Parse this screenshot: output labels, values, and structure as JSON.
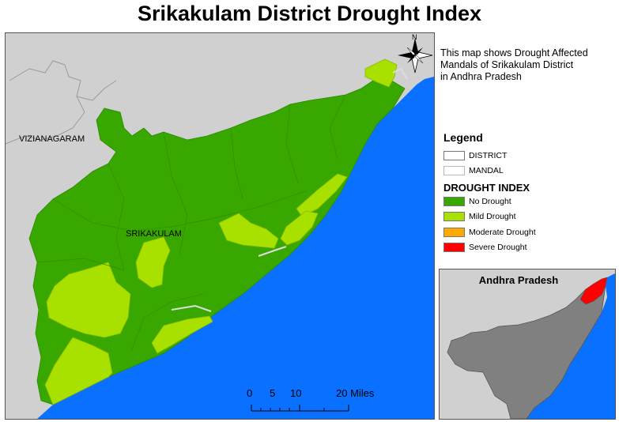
{
  "title": "Srikakulam District Drought Index",
  "description": [
    "This map shows Drought Affected",
    "Mandals of Srikakulam District",
    "in Andhra Pradesh"
  ],
  "map_labels": {
    "neighbor": "VIZIANAGARAM",
    "district": "SRIKAKULAM",
    "north": "N"
  },
  "legend": {
    "title": "Legend",
    "boundaries": [
      {
        "label": "DISTRICT"
      },
      {
        "label": "MANDAL"
      }
    ],
    "index_title": "DROUGHT INDEX",
    "classes": [
      {
        "label": "No Drought",
        "color": "#38a800"
      },
      {
        "label": "Mild Drought",
        "color": "#a8e000"
      },
      {
        "label": "Moderate Drought",
        "color": "#ffaa00"
      },
      {
        "label": "Severe Drought",
        "color": "#ff0000"
      }
    ]
  },
  "inset": {
    "title": "Andhra Pradesh"
  },
  "scale": {
    "ticks": [
      "0",
      "5",
      "10",
      "20 Miles"
    ]
  },
  "colors": {
    "sea": "#0a70ff",
    "land": "#d0d0d0",
    "no_drought": "#38a800",
    "mild": "#a8e000",
    "state": "#808080",
    "highlight": "#ff0000"
  }
}
